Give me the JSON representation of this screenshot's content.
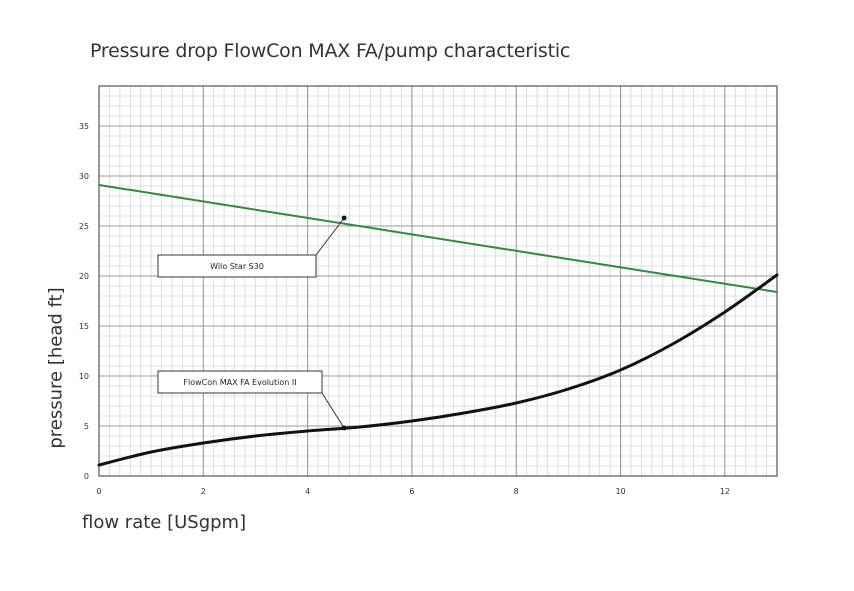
{
  "chart_data": {
    "type": "line",
    "title": "Pressure drop FlowCon MAX FA/pump characteristic",
    "xlabel": "flow rate [USgpm]",
    "ylabel": "pressure [head ft]",
    "xlim": [
      0,
      13
    ],
    "ylim": [
      0,
      39
    ],
    "x_ticks": [
      0,
      2,
      4,
      6,
      8,
      10,
      12
    ],
    "y_ticks": [
      0,
      5,
      10,
      15,
      20,
      25,
      30,
      35
    ],
    "grid": true,
    "series": [
      {
        "name": "Wilo Star S30",
        "color": "#2e8b3e",
        "x": [
          0,
          13
        ],
        "y": [
          29.1,
          18.4
        ]
      },
      {
        "name": "FlowCon MAX FA Evolution II",
        "color": "#111111",
        "x": [
          0,
          1,
          2,
          3,
          4,
          5,
          6,
          7,
          8,
          9,
          10,
          11,
          12,
          13
        ],
        "y": [
          1.1,
          2.4,
          3.3,
          4.0,
          4.5,
          4.9,
          5.5,
          6.3,
          7.3,
          8.7,
          10.6,
          13.2,
          16.4,
          20.1
        ]
      }
    ],
    "annotations": [
      {
        "text": "Wilo Star S30",
        "series": 0,
        "point_x": 4.7,
        "point_y": 25.8
      },
      {
        "text": "FlowCon MAX FA Evolution II",
        "series": 1,
        "point_x": 4.7,
        "point_y": 4.8
      }
    ]
  }
}
